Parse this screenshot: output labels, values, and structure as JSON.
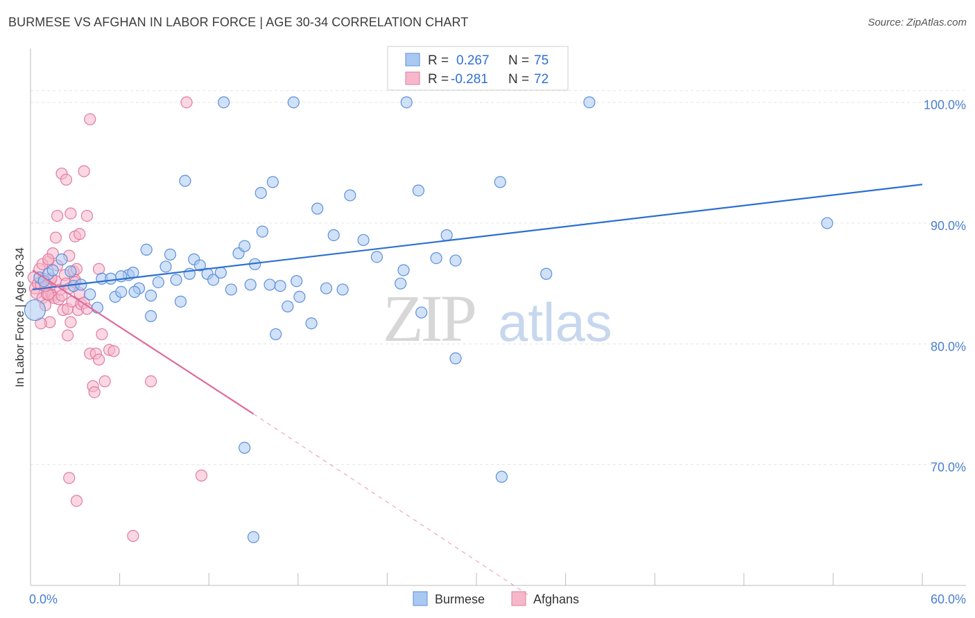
{
  "title": "BURMESE VS AFGHAN IN LABOR FORCE | AGE 30-34 CORRELATION CHART",
  "source": "Source: ZipAtlas.com",
  "colors": {
    "burmese_fill": "#a9c8f2",
    "burmese_stroke": "#5b8fd8",
    "burmese_line": "#2b6fd1",
    "afghan_fill": "#f6b7cb",
    "afghan_stroke": "#e07ba0",
    "afghan_line": "#e0699a",
    "tick_label": "#4a7fd0",
    "grid": "#e4e4e4"
  },
  "legend": {
    "r_label": "R =",
    "n_label": "N =",
    "burmese": {
      "r": "0.267",
      "n": "75"
    },
    "afghans": {
      "r": "-0.281",
      "n": "72"
    }
  },
  "watermark": {
    "zip": "ZIP",
    "atlas": "atlas"
  },
  "chart_data": {
    "type": "scatter",
    "xlabel": "",
    "ylabel": "In Labor Force | Age 30-34",
    "x_tick_labels": [
      "0.0%",
      "60.0%"
    ],
    "y_tick_labels": [
      "100.0%",
      "90.0%",
      "80.0%",
      "70.0%"
    ],
    "y_ticks": [
      100,
      90,
      80,
      70
    ],
    "xlim": [
      0,
      60
    ],
    "ylim": [
      60,
      104
    ],
    "grid": true,
    "legend_position": "top-center",
    "series": [
      {
        "name": "Burmese",
        "r": 0.267,
        "n": 75,
        "trend": {
          "x": [
            0,
            60
          ],
          "y": [
            84.5,
            93.2
          ],
          "dashed_after": null
        },
        "points": [
          [
            0.3,
            82.8,
            "big"
          ],
          [
            0.6,
            85.5
          ],
          [
            0.9,
            85.2
          ],
          [
            1.2,
            85.8
          ],
          [
            1.5,
            86.1
          ],
          [
            2.1,
            87.0
          ],
          [
            2.7,
            86.0
          ],
          [
            2.9,
            84.8
          ],
          [
            3.4,
            84.9
          ],
          [
            4.0,
            84.1
          ],
          [
            4.5,
            83.0
          ],
          [
            4.8,
            85.4
          ],
          [
            5.4,
            85.4
          ],
          [
            5.7,
            83.9
          ],
          [
            6.1,
            84.3
          ],
          [
            6.6,
            85.7
          ],
          [
            6.9,
            85.9
          ],
          [
            7.3,
            84.6
          ],
          [
            7.8,
            87.8
          ],
          [
            8.1,
            82.3
          ],
          [
            8.6,
            85.1
          ],
          [
            9.1,
            86.4
          ],
          [
            9.4,
            87.4
          ],
          [
            9.8,
            85.3
          ],
          [
            10.1,
            83.5
          ],
          [
            10.7,
            85.8
          ],
          [
            11.0,
            87.0
          ],
          [
            11.4,
            86.5
          ],
          [
            11.9,
            85.8
          ],
          [
            12.3,
            85.3
          ],
          [
            12.8,
            85.9
          ],
          [
            13.5,
            84.5
          ],
          [
            14.0,
            87.5
          ],
          [
            14.4,
            88.1
          ],
          [
            14.8,
            84.9
          ],
          [
            15.1,
            86.6
          ],
          [
            15.6,
            89.3
          ],
          [
            16.1,
            84.9
          ],
          [
            16.5,
            80.8
          ],
          [
            16.8,
            84.8
          ],
          [
            17.3,
            83.1
          ],
          [
            17.9,
            85.2
          ],
          [
            18.1,
            83.9
          ],
          [
            18.9,
            81.7
          ],
          [
            19.3,
            91.2
          ],
          [
            19.9,
            84.6
          ],
          [
            20.4,
            89.0
          ],
          [
            21.0,
            84.5
          ],
          [
            21.5,
            92.3
          ],
          [
            22.4,
            88.6
          ],
          [
            23.3,
            87.2
          ],
          [
            24.9,
            85.0
          ],
          [
            25.1,
            86.1
          ],
          [
            26.3,
            82.6
          ],
          [
            26.1,
            92.7
          ],
          [
            27.3,
            87.1
          ],
          [
            28.0,
            89.0
          ],
          [
            28.6,
            86.9
          ],
          [
            28.6,
            78.8
          ],
          [
            31.7,
            69.0
          ],
          [
            31.6,
            93.4
          ],
          [
            34.7,
            85.8
          ],
          [
            37.6,
            100.0
          ],
          [
            53.6,
            90.0
          ],
          [
            15.0,
            64.0
          ],
          [
            14.4,
            71.4
          ],
          [
            10.4,
            93.5
          ],
          [
            13.0,
            100.0
          ],
          [
            25.3,
            100.0
          ],
          [
            17.7,
            100.0
          ],
          [
            16.3,
            93.4
          ],
          [
            15.5,
            92.5
          ],
          [
            8.1,
            84.0
          ],
          [
            7.0,
            84.3
          ],
          [
            6.1,
            85.6
          ]
        ]
      },
      {
        "name": "Afghans",
        "r": -0.281,
        "n": 72,
        "trend": {
          "x": [
            0,
            15.0
          ],
          "y": [
            86.1,
            74.2
          ],
          "dashed_to": [
            33.5,
            59.2
          ]
        },
        "points": [
          [
            0.2,
            85.5
          ],
          [
            0.3,
            84.6
          ],
          [
            0.4,
            84.2
          ],
          [
            0.5,
            85.0
          ],
          [
            0.6,
            86.2
          ],
          [
            0.7,
            84.9
          ],
          [
            0.8,
            83.8
          ],
          [
            0.9,
            85.4
          ],
          [
            1.0,
            83.2
          ],
          [
            1.1,
            84.1
          ],
          [
            1.2,
            86.8
          ],
          [
            1.3,
            85.2
          ],
          [
            1.4,
            84.1
          ],
          [
            1.5,
            84.0
          ],
          [
            1.6,
            83.8
          ],
          [
            1.7,
            85.2
          ],
          [
            1.8,
            86.5
          ],
          [
            1.9,
            83.7
          ],
          [
            2.0,
            84.5
          ],
          [
            2.1,
            84.0
          ],
          [
            2.2,
            82.8
          ],
          [
            2.3,
            85.7
          ],
          [
            2.4,
            85.0
          ],
          [
            2.5,
            82.9
          ],
          [
            2.6,
            84.6
          ],
          [
            2.7,
            81.8
          ],
          [
            2.8,
            83.5
          ],
          [
            2.9,
            86.0
          ],
          [
            3.0,
            85.3
          ],
          [
            3.1,
            86.2
          ],
          [
            3.2,
            82.8
          ],
          [
            3.3,
            84.2
          ],
          [
            3.4,
            83.3
          ],
          [
            3.6,
            83.4
          ],
          [
            3.8,
            82.9
          ],
          [
            4.0,
            79.2
          ],
          [
            4.2,
            76.5
          ],
          [
            4.4,
            79.2
          ],
          [
            4.6,
            78.7
          ],
          [
            4.8,
            80.8
          ],
          [
            5.0,
            76.9
          ],
          [
            5.3,
            79.5
          ],
          [
            5.6,
            79.4
          ],
          [
            1.2,
            84.1
          ],
          [
            1.3,
            81.8
          ],
          [
            1.5,
            87.5
          ],
          [
            1.7,
            88.8
          ],
          [
            1.8,
            90.6
          ],
          [
            2.1,
            94.1
          ],
          [
            2.4,
            93.6
          ],
          [
            2.7,
            90.8
          ],
          [
            3.0,
            88.9
          ],
          [
            3.3,
            89.1
          ],
          [
            3.6,
            94.3
          ],
          [
            3.8,
            90.6
          ],
          [
            4.0,
            98.6
          ],
          [
            4.3,
            76.0
          ],
          [
            4.6,
            86.2
          ],
          [
            8.1,
            76.9
          ],
          [
            10.5,
            100.0
          ],
          [
            11.5,
            69.1
          ],
          [
            3.1,
            67.0
          ],
          [
            2.6,
            68.9
          ],
          [
            6.9,
            64.1
          ],
          [
            2.5,
            80.7
          ],
          [
            0.7,
            81.7
          ],
          [
            0.8,
            86.6
          ],
          [
            1.0,
            84.8
          ],
          [
            1.2,
            87.0
          ],
          [
            1.4,
            85.4
          ],
          [
            2.6,
            87.3
          ],
          [
            3.0,
            85.1
          ]
        ]
      }
    ]
  },
  "bottom_legend": [
    "Burmese",
    "Afghans"
  ]
}
